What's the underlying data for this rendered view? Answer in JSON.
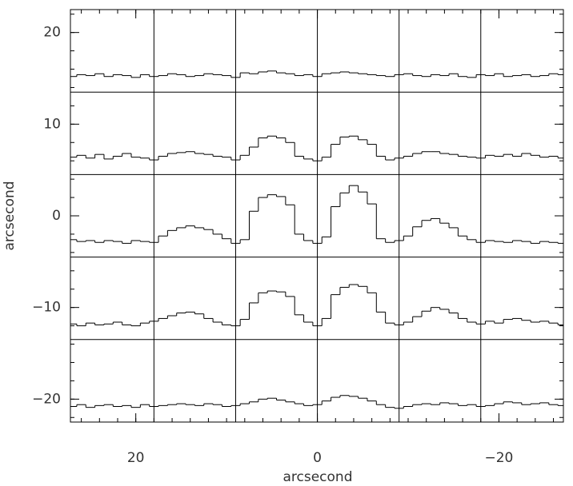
{
  "chart_data": {
    "type": "step",
    "xlabel": "arcsecond",
    "ylabel": "arcsecond",
    "xlim": [
      27.2,
      -27.1
    ],
    "ylim": [
      -22.5,
      22.5
    ],
    "xticks": [
      20,
      0,
      {
        "value": -20,
        "label": "−20"
      }
    ],
    "yticks": [
      20,
      10,
      0,
      {
        "value": -10,
        "label": "−10"
      },
      {
        "value": -20,
        "label": "−20"
      }
    ],
    "xminor_ticks": [
      26,
      24,
      22,
      20,
      18,
      16,
      14,
      12,
      10,
      8,
      6,
      4,
      2,
      0,
      -2,
      -4,
      -6,
      -8,
      -10,
      -12,
      -14,
      -16,
      -18,
      -20,
      -22,
      -24,
      -26
    ],
    "yminor_ticks": [
      -22,
      -20,
      -18,
      -16,
      -14,
      -12,
      -10,
      -8,
      -6,
      -4,
      -2,
      0,
      2,
      4,
      6,
      8,
      10,
      12,
      14,
      16,
      18,
      20,
      22
    ],
    "panel_x": [
      18,
      9,
      0,
      -9,
      -18
    ],
    "panel_y": [
      13.5,
      4.5,
      -4.5,
      -13.5
    ],
    "color": "#000000",
    "x": [
      27,
      26,
      25,
      24,
      23,
      22,
      21,
      20,
      19,
      18,
      17,
      16,
      15,
      14,
      13,
      12,
      11,
      10,
      9,
      8,
      7,
      6,
      5,
      4,
      3,
      2,
      1,
      0,
      -1,
      -2,
      -3,
      -4,
      -5,
      -6,
      -7,
      -8,
      -9,
      -10,
      -11,
      -12,
      -13,
      -14,
      -15,
      -16,
      -17,
      -18,
      -19,
      -20,
      -21,
      -22,
      -23,
      -24,
      -25,
      -26,
      -27
    ],
    "series": [
      {
        "values": [
          15.2,
          15.4,
          15.3,
          15.5,
          15.2,
          15.4,
          15.3,
          15.1,
          15.4,
          15.2,
          15.3,
          15.5,
          15.4,
          15.2,
          15.3,
          15.5,
          15.4,
          15.3,
          15.1,
          15.6,
          15.5,
          15.7,
          15.8,
          15.6,
          15.5,
          15.3,
          15.4,
          15.2,
          15.5,
          15.6,
          15.7,
          15.6,
          15.5,
          15.4,
          15.3,
          15.2,
          15.4,
          15.5,
          15.3,
          15.2,
          15.4,
          15.3,
          15.5,
          15.2,
          15.1,
          15.4,
          15.3,
          15.5,
          15.2,
          15.3,
          15.4,
          15.2,
          15.3,
          15.5,
          15.4
        ]
      },
      {
        "values": [
          6.4,
          6.6,
          6.3,
          6.7,
          6.2,
          6.5,
          6.8,
          6.4,
          6.3,
          6.1,
          6.5,
          6.8,
          6.9,
          7.0,
          6.8,
          6.7,
          6.5,
          6.4,
          6.1,
          6.6,
          7.5,
          8.5,
          8.7,
          8.5,
          8.0,
          6.5,
          6.2,
          6.0,
          6.4,
          7.8,
          8.6,
          8.7,
          8.3,
          7.8,
          6.5,
          6.1,
          6.3,
          6.5,
          6.8,
          7.0,
          7.0,
          6.8,
          6.7,
          6.5,
          6.4,
          6.3,
          6.6,
          6.5,
          6.7,
          6.5,
          6.8,
          6.6,
          6.4,
          6.5,
          6.3
        ]
      },
      {
        "values": [
          -2.6,
          -2.8,
          -2.7,
          -2.9,
          -2.7,
          -2.8,
          -3.0,
          -2.7,
          -2.8,
          -2.9,
          -2.2,
          -1.6,
          -1.3,
          -1.1,
          -1.3,
          -1.5,
          -2.0,
          -2.5,
          -3.0,
          -2.6,
          0.5,
          2.0,
          2.3,
          2.1,
          1.2,
          -2.0,
          -2.7,
          -3.0,
          -2.3,
          1.0,
          2.5,
          3.3,
          2.6,
          1.3,
          -2.5,
          -2.9,
          -2.7,
          -2.2,
          -1.2,
          -0.5,
          -0.3,
          -0.8,
          -1.3,
          -2.2,
          -2.6,
          -2.9,
          -2.7,
          -2.8,
          -2.9,
          -2.7,
          -2.8,
          -3.0,
          -2.8,
          -2.9,
          -3.0
        ]
      },
      {
        "values": [
          -11.8,
          -12.0,
          -11.7,
          -11.9,
          -11.8,
          -11.6,
          -11.9,
          -12.0,
          -11.7,
          -11.5,
          -11.2,
          -10.9,
          -10.6,
          -10.5,
          -10.7,
          -11.2,
          -11.6,
          -11.9,
          -12.0,
          -11.3,
          -9.5,
          -8.4,
          -8.2,
          -8.3,
          -8.8,
          -10.8,
          -11.6,
          -12.0,
          -11.2,
          -8.6,
          -7.8,
          -7.5,
          -7.7,
          -8.4,
          -10.5,
          -11.7,
          -11.9,
          -11.6,
          -11.0,
          -10.4,
          -10.0,
          -10.2,
          -10.6,
          -11.2,
          -11.6,
          -11.8,
          -11.5,
          -11.7,
          -11.3,
          -11.2,
          -11.4,
          -11.6,
          -11.5,
          -11.7,
          -11.9
        ]
      },
      {
        "values": [
          -20.8,
          -20.6,
          -20.9,
          -20.7,
          -20.6,
          -20.8,
          -20.7,
          -20.9,
          -20.6,
          -20.8,
          -20.7,
          -20.6,
          -20.5,
          -20.6,
          -20.7,
          -20.5,
          -20.6,
          -20.8,
          -20.7,
          -20.5,
          -20.3,
          -20.0,
          -19.9,
          -20.1,
          -20.3,
          -20.5,
          -20.7,
          -20.6,
          -20.2,
          -19.8,
          -19.6,
          -19.7,
          -19.9,
          -20.2,
          -20.6,
          -20.9,
          -21.0,
          -20.8,
          -20.6,
          -20.5,
          -20.6,
          -20.4,
          -20.5,
          -20.7,
          -20.6,
          -20.8,
          -20.7,
          -20.5,
          -20.3,
          -20.4,
          -20.6,
          -20.5,
          -20.4,
          -20.6,
          -20.7
        ]
      }
    ]
  }
}
